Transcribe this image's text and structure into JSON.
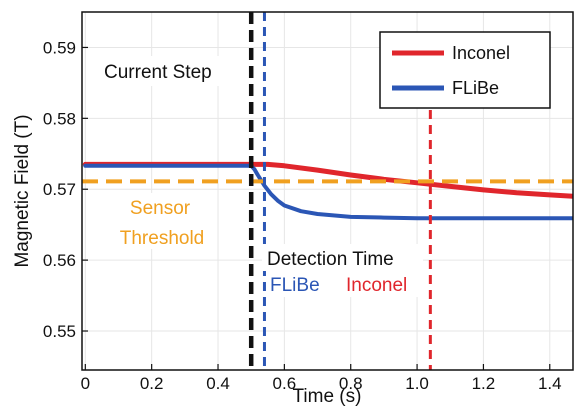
{
  "chart_data": {
    "type": "line",
    "xlabel": "Time (s)",
    "ylabel": "Magnetic Field (T)",
    "xlim": [
      -0.01,
      1.47
    ],
    "ylim": [
      0.5445,
      0.595
    ],
    "x_ticks": [
      0,
      0.2,
      0.4,
      0.6,
      0.8,
      1.0,
      1.2,
      1.4
    ],
    "x_tick_labels": [
      "0",
      "0.2",
      "0.4",
      "0.6",
      "0.8",
      "1.0",
      "1.2",
      "1.4"
    ],
    "y_ticks": [
      0.55,
      0.56,
      0.57,
      0.58,
      0.59
    ],
    "y_tick_labels": [
      "0.55",
      "0.56",
      "0.57",
      "0.58",
      "0.59"
    ],
    "grid": true,
    "legend_position": "top-right",
    "series": [
      {
        "name": "Inconel",
        "color": "#e0262c",
        "x": [
          0,
          0.5,
          0.55,
          0.6,
          0.7,
          0.8,
          0.9,
          1.0,
          1.1,
          1.2,
          1.3,
          1.4,
          1.47
        ],
        "y": [
          0.5735,
          0.5735,
          0.5735,
          0.5733,
          0.5727,
          0.572,
          0.5714,
          0.5709,
          0.5704,
          0.5699,
          0.5695,
          0.5692,
          0.569
        ]
      },
      {
        "name": "FLiBe",
        "color": "#2b56b5",
        "x": [
          0,
          0.5,
          0.51,
          0.52,
          0.54,
          0.56,
          0.58,
          0.6,
          0.65,
          0.7,
          0.8,
          0.9,
          1.0,
          1.1,
          1.2,
          1.3,
          1.4,
          1.47
        ],
        "y": [
          0.5733,
          0.5733,
          0.5728,
          0.572,
          0.5705,
          0.5693,
          0.5684,
          0.5677,
          0.5669,
          0.5665,
          0.5661,
          0.566,
          0.5659,
          0.5659,
          0.5659,
          0.5659,
          0.5659,
          0.5659
        ]
      }
    ],
    "reference_lines": {
      "threshold": {
        "y": 0.5711,
        "color": "#f0a020"
      },
      "current_step": {
        "x": 0.5,
        "color": "#111111"
      },
      "flibe_detection": {
        "x": 0.54,
        "color": "#2b56b5"
      },
      "inconel_detection": {
        "x": 1.04,
        "color": "#e0262c"
      }
    },
    "annotations": {
      "current_step": "Current Step",
      "sensor": "Sensor",
      "threshold": "Threshold",
      "detection_time": "Detection Time",
      "flibe": "FLiBe",
      "inconel": "Inconel"
    }
  }
}
